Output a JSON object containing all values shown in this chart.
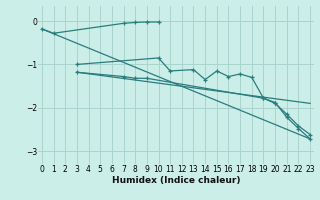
{
  "xlabel": "Humidex (Indice chaleur)",
  "x_ticks": [
    0,
    1,
    2,
    3,
    4,
    5,
    6,
    7,
    8,
    9,
    10,
    11,
    12,
    13,
    14,
    15,
    16,
    17,
    18,
    19,
    20,
    21,
    22,
    23
  ],
  "ylim": [
    -3.3,
    0.35
  ],
  "xlim": [
    -0.3,
    23.3
  ],
  "y_ticks": [
    0,
    -1,
    -2,
    -3
  ],
  "bg_color": "#cceee8",
  "grid_color": "#aad4ce",
  "line_color": "#2a7d7d",
  "line1_x": [
    0,
    1,
    7,
    8,
    9,
    10
  ],
  "line1_y": [
    -0.18,
    -0.28,
    -0.05,
    -0.03,
    -0.02,
    -0.02
  ],
  "line2_x": [
    3,
    10,
    11,
    13,
    14,
    15,
    16,
    17,
    18,
    19,
    20,
    21,
    22,
    23
  ],
  "line2_y": [
    -1.0,
    -0.85,
    -1.15,
    -1.12,
    -1.35,
    -1.15,
    -1.28,
    -1.22,
    -1.3,
    -1.78,
    -1.88,
    -2.22,
    -2.48,
    -2.72
  ],
  "line3_x": [
    3,
    7,
    8,
    9,
    19,
    20,
    21,
    22,
    23
  ],
  "line3_y": [
    -1.18,
    -1.28,
    -1.32,
    -1.32,
    -1.78,
    -1.9,
    -2.15,
    -2.42,
    -2.62
  ],
  "line4_x": [
    0,
    23
  ],
  "line4_y": [
    -0.18,
    -2.72
  ],
  "line5_x": [
    3,
    23
  ],
  "line5_y": [
    -1.18,
    -1.9
  ]
}
